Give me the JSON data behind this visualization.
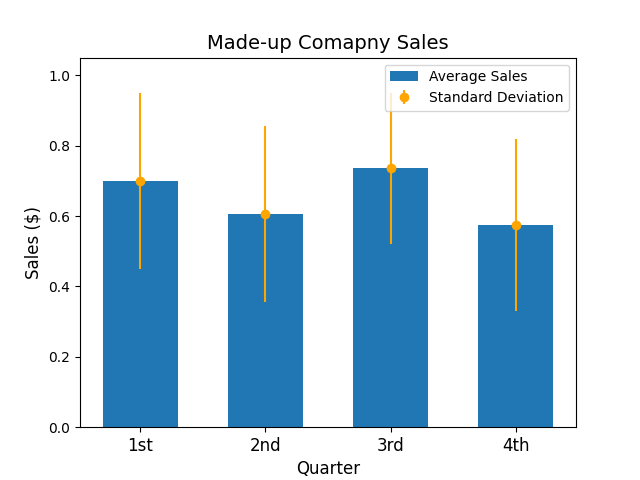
{
  "categories": [
    "1st",
    "2nd",
    "3rd",
    "4th"
  ],
  "means": [
    0.7,
    0.605,
    0.735,
    0.575
  ],
  "stds": [
    0.25,
    0.25,
    0.215,
    0.245
  ],
  "bar_color": "#2077b4",
  "errorbar_color": "orange",
  "title": "Made-up Comapny Sales",
  "xlabel": "Quarter",
  "ylabel": "Sales ($)",
  "ylim": [
    0.0,
    1.05
  ],
  "legend_labels": [
    "Average Sales",
    "Standard Deviation"
  ],
  "title_fontsize": 14,
  "axis_fontsize": 12
}
